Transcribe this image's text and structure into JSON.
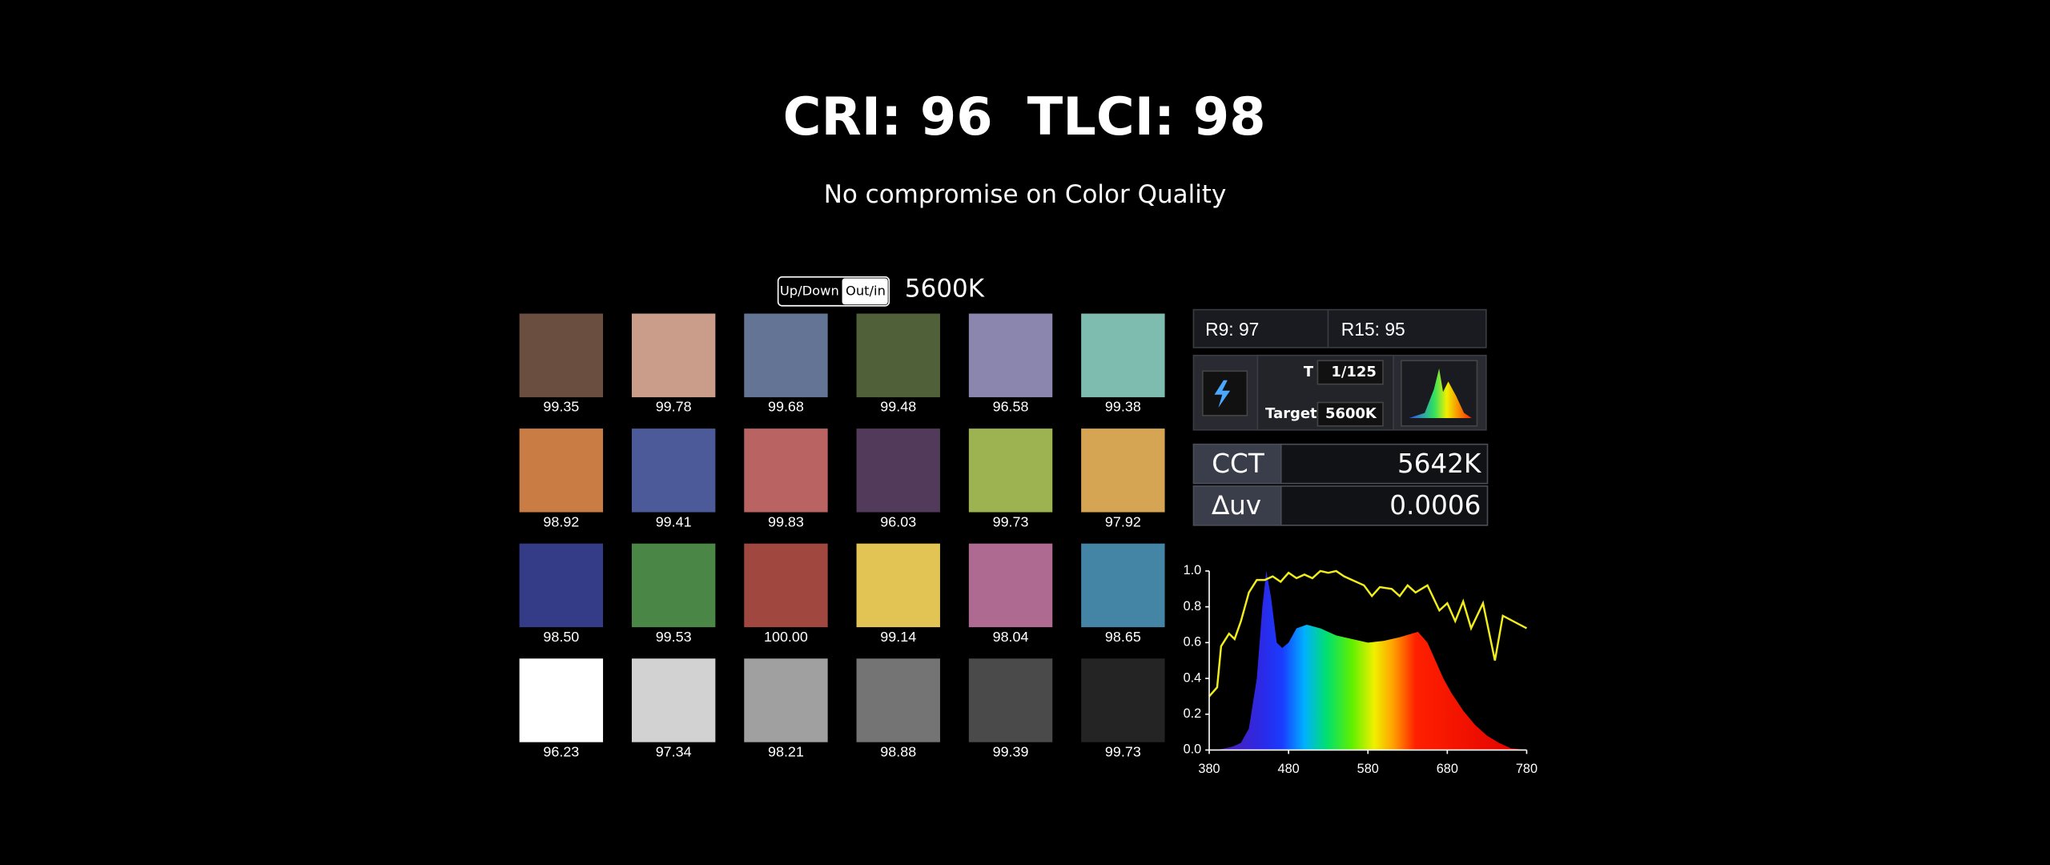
{
  "header": {
    "title_left": "CRI: 96",
    "title_right": "TLCI: 98",
    "subtitle": "No compromise on Color Quality"
  },
  "toggle": {
    "options": [
      "Up/Down",
      "Out/in"
    ],
    "cct": "5600K"
  },
  "swatches": [
    {
      "label": "99.35",
      "color": "#6a4e40"
    },
    {
      "label": "99.78",
      "color": "#c99d8a"
    },
    {
      "label": "99.68",
      "color": "#647494"
    },
    {
      "label": "99.48",
      "color": "#506039"
    },
    {
      "label": "96.58",
      "color": "#8a86ae"
    },
    {
      "label": "99.38",
      "color": "#7ebcb0"
    },
    {
      "label": "98.92",
      "color": "#c97d45"
    },
    {
      "label": "99.41",
      "color": "#4c5a9a"
    },
    {
      "label": "99.83",
      "color": "#b96362"
    },
    {
      "label": "96.03",
      "color": "#523b5a"
    },
    {
      "label": "99.73",
      "color": "#9db351"
    },
    {
      "label": "97.92",
      "color": "#d6a553"
    },
    {
      "label": "98.50",
      "color": "#343c87"
    },
    {
      "label": "99.53",
      "color": "#4a8645"
    },
    {
      "label": "100.00",
      "color": "#a04740"
    },
    {
      "label": "99.14",
      "color": "#e2c455"
    },
    {
      "label": "98.04",
      "color": "#af6a92"
    },
    {
      "label": "98.65",
      "color": "#4484a4"
    },
    {
      "label": "96.23",
      "color": "#ffffff"
    },
    {
      "label": "97.34",
      "color": "#d2d2d2"
    },
    {
      "label": "98.21",
      "color": "#a0a0a0"
    },
    {
      "label": "98.88",
      "color": "#747474"
    },
    {
      "label": "99.39",
      "color": "#4a4a4a"
    },
    {
      "label": "99.73",
      "color": "#242424"
    }
  ],
  "meter": {
    "r9": "R9: 97",
    "r15": "R15: 95",
    "shutter_label": "T",
    "shutter": "1/125",
    "target_label": "Target",
    "target": "5600K",
    "rows": [
      {
        "label": "CCT",
        "value": "5642K"
      },
      {
        "label": "∆uv",
        "value": "0.0006"
      }
    ]
  },
  "chart_data": {
    "type": "line",
    "xlim": [
      380,
      780
    ],
    "xticks": [
      380,
      480,
      580,
      680,
      780
    ],
    "ylim": [
      0,
      1
    ],
    "yticks": [
      {
        "value": 0,
        "label": "0.0"
      },
      {
        "value": 0.2,
        "label": "0.2"
      },
      {
        "value": 0.4,
        "label": "0.4"
      },
      {
        "value": 0.6,
        "label": "0.6"
      },
      {
        "value": 0.8,
        "label": "0.8"
      },
      {
        "value": 1,
        "label": "1.0"
      }
    ],
    "series": [
      {
        "kind": "area",
        "fill": "spectrum",
        "x": [
          380,
          390,
          400,
          410,
          420,
          430,
          440,
          447,
          452,
          458,
          465,
          472,
          480,
          490,
          503,
          520,
          540,
          560,
          580,
          600,
          620,
          643,
          655,
          665,
          675,
          685,
          700,
          715,
          730,
          745,
          760,
          780
        ],
        "values": [
          0,
          0,
          0.01,
          0.02,
          0.04,
          0.12,
          0.4,
          0.8,
          1.0,
          0.85,
          0.6,
          0.57,
          0.6,
          0.68,
          0.7,
          0.68,
          0.64,
          0.62,
          0.6,
          0.61,
          0.63,
          0.66,
          0.6,
          0.5,
          0.4,
          0.32,
          0.22,
          0.14,
          0.08,
          0.04,
          0.01,
          0
        ]
      },
      {
        "kind": "line",
        "color": "#f2ee1a",
        "x": [
          380,
          390,
          395,
          405,
          412,
          420,
          430,
          440,
          450,
          460,
          470,
          480,
          490,
          500,
          510,
          520,
          530,
          540,
          550,
          560,
          575,
          585,
          595,
          610,
          620,
          630,
          640,
          655,
          670,
          680,
          690,
          700,
          710,
          725,
          740,
          750,
          780
        ],
        "values": [
          0.3,
          0.35,
          0.58,
          0.65,
          0.62,
          0.72,
          0.88,
          0.95,
          0.95,
          0.97,
          0.94,
          0.99,
          0.96,
          0.98,
          0.96,
          1.0,
          0.99,
          1.0,
          0.97,
          0.95,
          0.92,
          0.86,
          0.91,
          0.9,
          0.86,
          0.92,
          0.88,
          0.92,
          0.78,
          0.82,
          0.72,
          0.83,
          0.68,
          0.82,
          0.5,
          0.75,
          0.68
        ]
      }
    ]
  }
}
